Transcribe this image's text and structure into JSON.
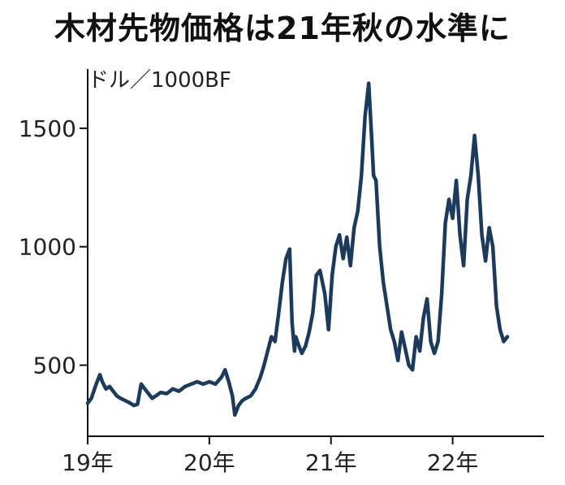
{
  "chart_data": {
    "type": "line",
    "title": "木材先物価格は21年秋の水準に",
    "ylabel": "ドル／1000BF",
    "xlabel": "",
    "ylim": [
      200,
      1750
    ],
    "xlim": [
      2019.0,
      2022.75
    ],
    "y_ticks": [
      {
        "value": 500,
        "label": "500"
      },
      {
        "value": 1000,
        "label": "1000"
      },
      {
        "value": 1500,
        "label": "1500"
      }
    ],
    "x_ticks": [
      {
        "value": 2019,
        "label": "19年"
      },
      {
        "value": 2020,
        "label": "20年"
      },
      {
        "value": 2021,
        "label": "21年"
      },
      {
        "value": 2022,
        "label": "22年"
      }
    ],
    "grid": false,
    "line_color": "#1b3a5c",
    "series": [
      {
        "x": [
          2019.0,
          2019.03,
          2019.07,
          2019.1,
          2019.12,
          2019.15,
          2019.18,
          2019.21,
          2019.24,
          2019.27,
          2019.31,
          2019.35,
          2019.38,
          2019.41,
          2019.44,
          2019.47,
          2019.5,
          2019.53,
          2019.56,
          2019.6,
          2019.65,
          2019.7,
          2019.75,
          2019.8,
          2019.85,
          2019.9,
          2019.95,
          2020.0,
          2020.05,
          2020.1,
          2020.13,
          2020.16,
          2020.19,
          2020.21,
          2020.24,
          2020.27,
          2020.3,
          2020.34,
          2020.38,
          2020.42,
          2020.45,
          2020.48,
          2020.51,
          2020.54,
          2020.57,
          2020.6,
          2020.63,
          2020.66,
          2020.68,
          2020.7,
          2020.71,
          2020.73,
          2020.76,
          2020.79,
          2020.82,
          2020.85,
          2020.88,
          2020.91,
          2020.95,
          2020.98,
          2021.01,
          2021.04,
          2021.07,
          2021.1,
          2021.13,
          2021.16,
          2021.19,
          2021.22,
          2021.25,
          2021.28,
          2021.31,
          2021.33,
          2021.35,
          2021.37,
          2021.4,
          2021.43,
          2021.46,
          2021.49,
          2021.52,
          2021.55,
          2021.58,
          2021.61,
          2021.64,
          2021.67,
          2021.7,
          2021.73,
          2021.76,
          2021.79,
          2021.82,
          2021.85,
          2021.88,
          2021.91,
          2021.94,
          2021.97,
          2022.0,
          2022.03,
          2022.06,
          2022.09,
          2022.12,
          2022.15,
          2022.18,
          2022.21,
          2022.24,
          2022.27,
          2022.3,
          2022.33,
          2022.36,
          2022.39,
          2022.42,
          2022.45
        ],
        "values": [
          340,
          360,
          420,
          460,
          430,
          400,
          410,
          390,
          370,
          360,
          350,
          340,
          330,
          335,
          420,
          400,
          380,
          360,
          370,
          385,
          380,
          400,
          390,
          410,
          420,
          430,
          420,
          430,
          420,
          450,
          480,
          430,
          370,
          290,
          330,
          350,
          360,
          370,
          400,
          450,
          500,
          560,
          620,
          600,
          720,
          850,
          950,
          990,
          680,
          560,
          620,
          590,
          550,
          580,
          640,
          720,
          880,
          900,
          800,
          650,
          880,
          1000,
          1050,
          950,
          1040,
          920,
          1080,
          1150,
          1300,
          1550,
          1690,
          1500,
          1300,
          1280,
          1000,
          850,
          750,
          650,
          600,
          520,
          640,
          570,
          500,
          480,
          620,
          560,
          700,
          780,
          600,
          550,
          600,
          800,
          1100,
          1200,
          1120,
          1280,
          1050,
          920,
          1200,
          1300,
          1470,
          1300,
          1050,
          940,
          1080,
          1000,
          750,
          650,
          600,
          620
        ]
      }
    ]
  }
}
